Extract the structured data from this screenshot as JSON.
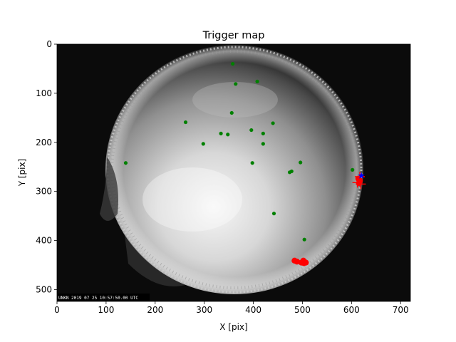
{
  "chart_data": {
    "type": "scatter",
    "title": "Trigger map",
    "xlabel": "X [pix]",
    "ylabel": "Y [pix]",
    "xlim": [
      0,
      720
    ],
    "ylim": [
      524,
      0
    ],
    "y_inverted": true,
    "grid": false,
    "background": "all-sky camera fisheye image",
    "image_caption": "UNKN 2019 07 25 10:57:50.00 UTC",
    "xticks": [
      0,
      100,
      200,
      300,
      400,
      500,
      600,
      700
    ],
    "yticks": [
      0,
      100,
      200,
      300,
      400,
      500
    ],
    "series": [
      {
        "color": "#008000",
        "marker": "dot",
        "points": [
          [
            358,
            40
          ],
          [
            408,
            76
          ],
          [
            364,
            81
          ],
          [
            356,
            140
          ],
          [
            262,
            159
          ],
          [
            440,
            161
          ],
          [
            396,
            175
          ],
          [
            420,
            182
          ],
          [
            334,
            182
          ],
          [
            348,
            184
          ],
          [
            298,
            203
          ],
          [
            420,
            203
          ],
          [
            140,
            242
          ],
          [
            398,
            242
          ],
          [
            496,
            241
          ],
          [
            478,
            259
          ],
          [
            474,
            261
          ],
          [
            602,
            256
          ],
          [
            442,
            345
          ],
          [
            504,
            398
          ],
          [
            502,
            441
          ],
          [
            506,
            442
          ]
        ]
      },
      {
        "color": "#ff0000",
        "marker": "large dot",
        "points": [
          [
            484,
            441
          ],
          [
            489,
            443
          ],
          [
            498,
            445
          ],
          [
            503,
            446
          ],
          [
            507,
            445
          ],
          [
            502,
            441
          ],
          [
            614,
            274
          ],
          [
            617,
            278
          ],
          [
            615,
            283
          ]
        ]
      },
      {
        "color": "#ff0000",
        "marker": "plus",
        "points": [
          [
            617,
            270
          ],
          [
            619,
            285
          ],
          [
            612,
            282
          ]
        ]
      },
      {
        "color": "#0000ff",
        "marker": "star",
        "points": [
          [
            620,
            268
          ]
        ]
      }
    ],
    "colors": {
      "green": "#008000",
      "red": "#ff0000",
      "blue": "#0000ff"
    }
  }
}
